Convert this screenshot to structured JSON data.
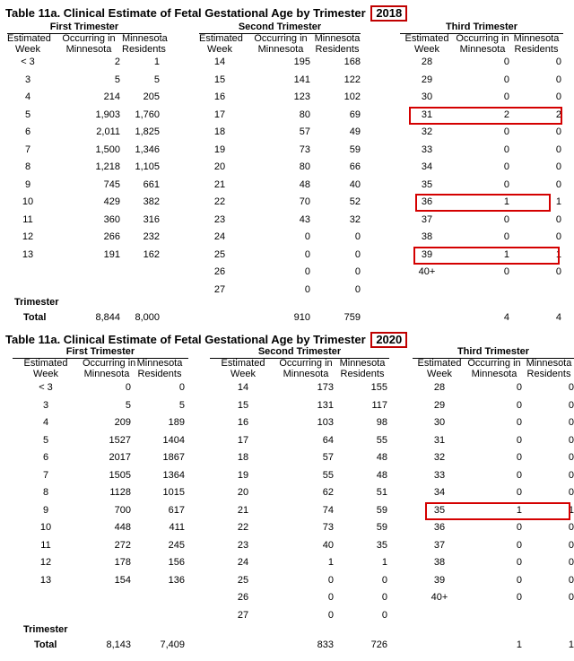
{
  "tables": [
    {
      "title": "Table 11a. Clinical Estimate of Fetal Gestational Age by Trimester",
      "year": "2018",
      "col_headers": {
        "week": [
          "Estimated",
          "Week"
        ],
        "occ": [
          "Occurring in",
          "Minnesota"
        ],
        "res": [
          "Minnesota",
          "Residents"
        ]
      },
      "trimesters": [
        {
          "name": "First Trimester",
          "rows": [
            [
              "< 3",
              "2",
              "1"
            ],
            [
              "3",
              "5",
              "5"
            ],
            [
              "4",
              "214",
              "205"
            ],
            [
              "5",
              "1,903",
              "1,760"
            ],
            [
              "6",
              "2,011",
              "1,825"
            ],
            [
              "7",
              "1,500",
              "1,346"
            ],
            [
              "8",
              "1,218",
              "1,105"
            ],
            [
              "9",
              "745",
              "661"
            ],
            [
              "10",
              "429",
              "382"
            ],
            [
              "11",
              "360",
              "316"
            ],
            [
              "12",
              "266",
              "232"
            ],
            [
              "13",
              "191",
              "162"
            ]
          ],
          "total": [
            "8,844",
            "8,000"
          ]
        },
        {
          "name": "Second Trimester",
          "rows": [
            [
              "14",
              "195",
              "168"
            ],
            [
              "15",
              "141",
              "122"
            ],
            [
              "16",
              "123",
              "102"
            ],
            [
              "17",
              "80",
              "69"
            ],
            [
              "18",
              "57",
              "49"
            ],
            [
              "19",
              "73",
              "59"
            ],
            [
              "20",
              "80",
              "66"
            ],
            [
              "21",
              "48",
              "40"
            ],
            [
              "22",
              "70",
              "52"
            ],
            [
              "23",
              "43",
              "32"
            ],
            [
              "24",
              "0",
              "0"
            ],
            [
              "25",
              "0",
              "0"
            ],
            [
              "26",
              "0",
              "0"
            ],
            [
              "27",
              "0",
              "0"
            ]
          ],
          "total": [
            "910",
            "759"
          ]
        },
        {
          "name": "Third Trimester",
          "rows": [
            [
              "28",
              "0",
              "0"
            ],
            [
              "29",
              "0",
              "0"
            ],
            [
              "30",
              "0",
              "0"
            ],
            [
              "31",
              "2",
              "2"
            ],
            [
              "32",
              "0",
              "0"
            ],
            [
              "33",
              "0",
              "0"
            ],
            [
              "34",
              "0",
              "0"
            ],
            [
              "35",
              "0",
              "0"
            ],
            [
              "36",
              "1",
              "1"
            ],
            [
              "37",
              "0",
              "0"
            ],
            [
              "38",
              "0",
              "0"
            ],
            [
              "39",
              "1",
              "1"
            ],
            [
              "40+",
              "0",
              "0"
            ]
          ],
          "total": [
            "4",
            "4"
          ]
        }
      ],
      "total_label": [
        "Trimester",
        "Total"
      ],
      "highlight_color": "#d40000"
    },
    {
      "title": "Table 11a. Clinical Estimate of Fetal Gestational Age by Trimester",
      "year": "2020",
      "col_headers": {
        "week": [
          "Estimated",
          "Week"
        ],
        "occ": [
          "Occurring in",
          "Minnesota"
        ],
        "res": [
          "Minnesota",
          "Residents"
        ]
      },
      "trimesters": [
        {
          "name": "First Trimester",
          "rows": [
            [
              "< 3",
              "0",
              "0"
            ],
            [
              "3",
              "5",
              "5"
            ],
            [
              "4",
              "209",
              "189"
            ],
            [
              "5",
              "1527",
              "1404"
            ],
            [
              "6",
              "2017",
              "1867"
            ],
            [
              "7",
              "1505",
              "1364"
            ],
            [
              "8",
              "1128",
              "1015"
            ],
            [
              "9",
              "700",
              "617"
            ],
            [
              "10",
              "448",
              "411"
            ],
            [
              "11",
              "272",
              "245"
            ],
            [
              "12",
              "178",
              "156"
            ],
            [
              "13",
              "154",
              "136"
            ]
          ],
          "total": [
            "8,143",
            "7,409"
          ]
        },
        {
          "name": "Second Trimester",
          "rows": [
            [
              "14",
              "173",
              "155"
            ],
            [
              "15",
              "131",
              "117"
            ],
            [
              "16",
              "103",
              "98"
            ],
            [
              "17",
              "64",
              "55"
            ],
            [
              "18",
              "57",
              "48"
            ],
            [
              "19",
              "55",
              "48"
            ],
            [
              "20",
              "62",
              "51"
            ],
            [
              "21",
              "74",
              "59"
            ],
            [
              "22",
              "73",
              "59"
            ],
            [
              "23",
              "40",
              "35"
            ],
            [
              "24",
              "1",
              "1"
            ],
            [
              "25",
              "0",
              "0"
            ],
            [
              "26",
              "0",
              "0"
            ],
            [
              "27",
              "0",
              "0"
            ]
          ],
          "total": [
            "833",
            "726"
          ]
        },
        {
          "name": "Third Trimester",
          "rows": [
            [
              "28",
              "0",
              "0"
            ],
            [
              "29",
              "0",
              "0"
            ],
            [
              "30",
              "0",
              "0"
            ],
            [
              "31",
              "0",
              "0"
            ],
            [
              "32",
              "0",
              "0"
            ],
            [
              "33",
              "0",
              "0"
            ],
            [
              "34",
              "0",
              "0"
            ],
            [
              "35",
              "1",
              "1"
            ],
            [
              "36",
              "0",
              "0"
            ],
            [
              "37",
              "0",
              "0"
            ],
            [
              "38",
              "0",
              "0"
            ],
            [
              "39",
              "0",
              "0"
            ],
            [
              "40+",
              "0",
              "0"
            ]
          ],
          "total": [
            "1",
            "1"
          ]
        }
      ],
      "total_label": [
        "Trimester",
        "Total"
      ],
      "highlight_color": "#d40000"
    }
  ]
}
